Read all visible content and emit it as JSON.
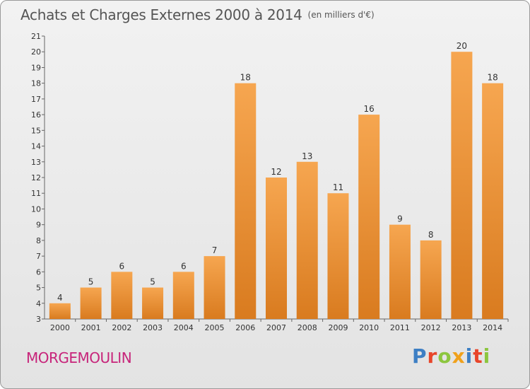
{
  "header": {
    "title": "Achats et Charges Externes 2000 à 2014",
    "unit": "(en milliers d'€)"
  },
  "footer": {
    "city": "MORGEMOULIN",
    "logo": "Proxiti",
    "logo_colors": [
      "#3d7fc4",
      "#e8452a",
      "#8cc63f",
      "#f0a11b",
      "#3d7fc4",
      "#e8452a",
      "#8cc63f"
    ]
  },
  "colors": {
    "bar_top": "#f6a650",
    "bar_bottom": "#d97b1f",
    "city": "#c7247a"
  },
  "chart_data": {
    "type": "bar",
    "title": "Achats et Charges Externes 2000 à 2014",
    "subtitle": "(en milliers d'€)",
    "categories": [
      "2000",
      "2001",
      "2002",
      "2003",
      "2004",
      "2005",
      "2006",
      "2007",
      "2008",
      "2009",
      "2010",
      "2011",
      "2012",
      "2013",
      "2014"
    ],
    "values": [
      4,
      5,
      6,
      5,
      6,
      7,
      18,
      12,
      13,
      11,
      16,
      9,
      8,
      20,
      18
    ],
    "ylim": [
      3,
      21
    ],
    "yticks": [
      3,
      4,
      5,
      6,
      7,
      8,
      9,
      10,
      11,
      12,
      13,
      14,
      15,
      16,
      17,
      18,
      19,
      20,
      21
    ],
    "grid": false,
    "data_labels": true
  }
}
